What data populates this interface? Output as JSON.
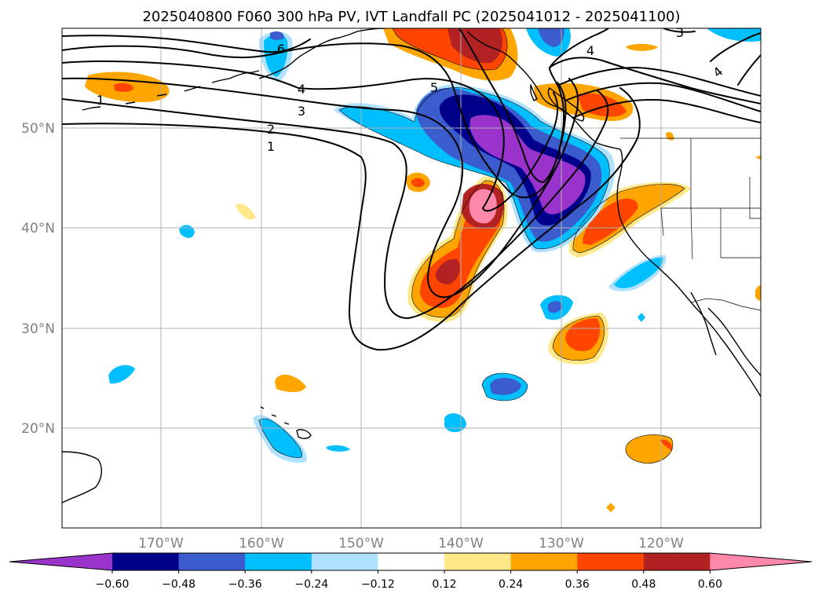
{
  "title": "2025040800 F060 300 hPa PV, IVT Landfall PC (2025041012 - 2025041100)",
  "lon_ticks": [
    "170°W",
    "160°W",
    "150°W",
    "140°W",
    "130°W",
    "120°W"
  ],
  "lat_ticks": [
    "50°N",
    "40°N",
    "30°N",
    "20°N"
  ],
  "contour_labels": [
    "1",
    "2",
    "3",
    "4",
    "5",
    "6",
    "1",
    "4",
    "3",
    "4"
  ],
  "colorbar": {
    "ticks": [
      "−0.60",
      "−0.48",
      "−0.36",
      "−0.24",
      "−0.12",
      "0.12",
      "0.24",
      "0.36",
      "0.48",
      "0.60"
    ],
    "colors": [
      "#9933cc",
      "#00008b",
      "#3a5ccc",
      "#00bfff",
      "#b0e2ff",
      "#ffffff",
      "#ffe88a",
      "#ffa500",
      "#ff4500",
      "#b22222",
      "#ff88aa"
    ]
  },
  "map": {
    "extent": {
      "lon": [
        -180,
        -110
      ],
      "lat": [
        10,
        60
      ]
    },
    "fill_variable": "IVT Landfall PC",
    "contour_variable": "300 hPa PV",
    "contour_levels": [
      1,
      2,
      3,
      4,
      5,
      6
    ]
  }
}
